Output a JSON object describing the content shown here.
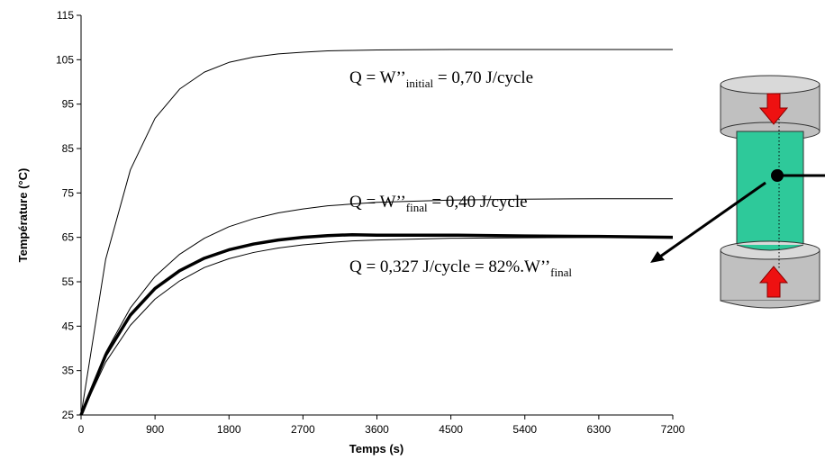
{
  "chart_data": {
    "type": "line",
    "x_label": "Temps (s)",
    "y_label": "Température (°C)",
    "xlim": [
      0,
      7200
    ],
    "xticks": [
      0,
      900,
      1800,
      2700,
      3600,
      4500,
      5400,
      6300,
      7200
    ],
    "ylim": [
      25,
      115
    ],
    "yticks": [
      25,
      35,
      45,
      55,
      65,
      75,
      85,
      95,
      105,
      115
    ],
    "grid": false,
    "x": [
      0,
      300,
      600,
      900,
      1200,
      1500,
      1800,
      2100,
      2400,
      2700,
      3000,
      3300,
      3600,
      4500,
      5400,
      6300,
      7200
    ],
    "series": [
      {
        "color": "#000000",
        "line_width": 1,
        "values": [
          25,
          60.1,
          80.2,
          91.8,
          98.4,
          102.2,
          104.4,
          105.6,
          106.3,
          106.7,
          107.0,
          107.1,
          107.2,
          107.3,
          107.3,
          107.3,
          107.3
        ]
      },
      {
        "color": "#000000",
        "line_width": 1,
        "values": [
          25,
          39.1,
          49.1,
          56.2,
          61.2,
          64.8,
          67.4,
          69.2,
          70.5,
          71.4,
          72.1,
          72.5,
          72.9,
          73.4,
          73.6,
          73.7,
          73.7
        ]
      },
      {
        "color": "#000000",
        "line_width": 1,
        "values": [
          25,
          36.9,
          45.2,
          51.1,
          55.2,
          58.2,
          60.2,
          61.6,
          62.6,
          63.3,
          63.8,
          64.2,
          64.4,
          64.8,
          64.9,
          65.0,
          65.0
        ]
      },
      {
        "color": "#000000",
        "line_width": 3.5,
        "values": [
          25,
          38.5,
          47.5,
          53.5,
          57.5,
          60.3,
          62.2,
          63.5,
          64.4,
          65.0,
          65.4,
          65.6,
          65.5,
          65.5,
          65.3,
          65.2,
          65.0
        ]
      }
    ],
    "annotations": [
      {
        "text": "Q = W’’",
        "sub": "initial",
        "after": " = 0,70 J/cycle"
      },
      {
        "text": "Q = W’’",
        "sub": "final",
        "after": " = 0,40 J/cycle"
      },
      {
        "text": "Q = 0,327 J/cycle = 82%.W’’",
        "sub": "final",
        "after": ""
      }
    ]
  }
}
